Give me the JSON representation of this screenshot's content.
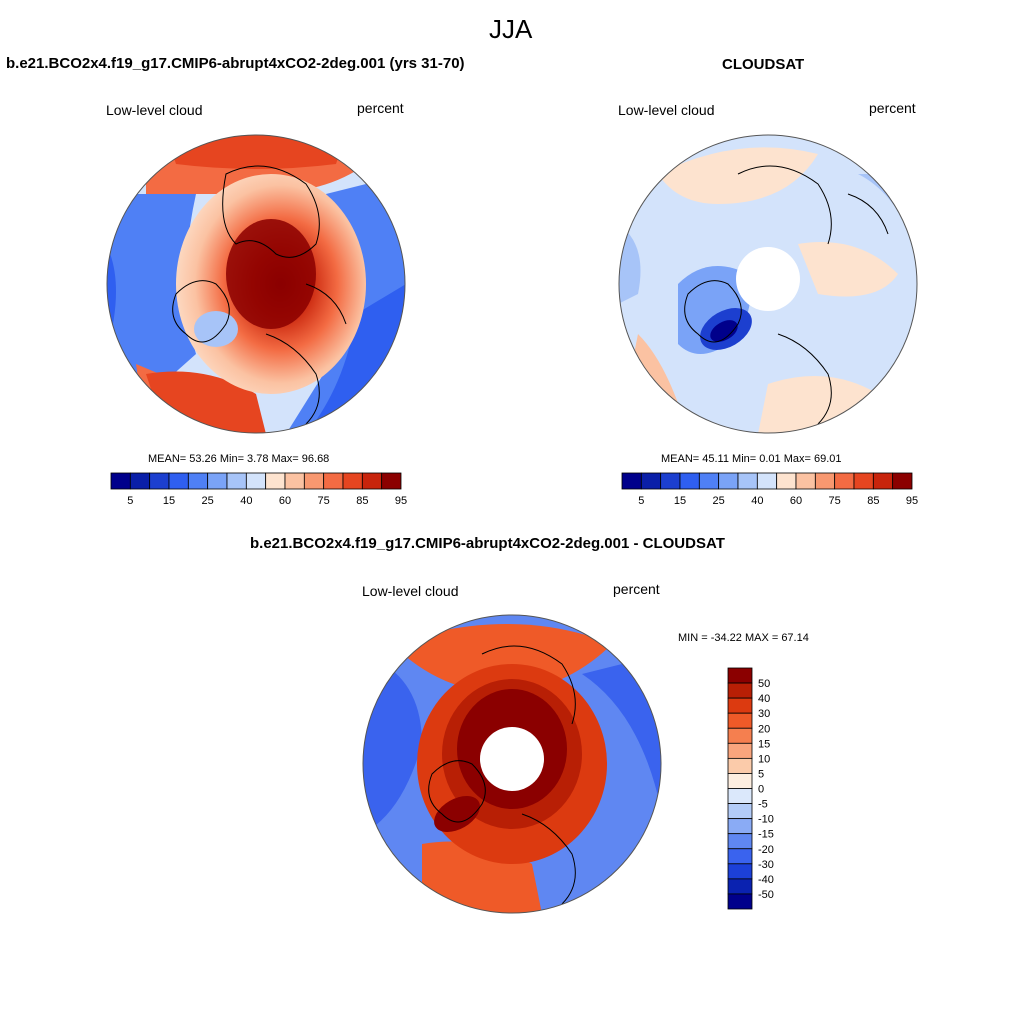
{
  "page_title": "JJA",
  "panels": [
    {
      "title": "b.e21.BCO2x4.f19_g17.CMIP6-abrupt4xCO2-2deg.001 (yrs 31-70)",
      "left_label": "Low-level cloud",
      "right_label": "percent",
      "stats": "MEAN=  53.26  Min=   3.78  Max=  96.68"
    },
    {
      "title": "CLOUDSAT",
      "left_label": "Low-level cloud",
      "right_label": "percent",
      "stats": "MEAN=  45.11  Min=   0.01  Max=  69.01"
    },
    {
      "title": "b.e21.BCO2x4.f19_g17.CMIP6-abrupt4xCO2-2deg.001 - CLOUDSAT",
      "left_label": "Low-level cloud",
      "right_label": "percent",
      "stats": "MIN = -34.22 MAX =  67.14"
    }
  ],
  "abs_colorbar": {
    "colors": [
      "#00008b",
      "#0a1fa8",
      "#1c3fcf",
      "#2f5ff0",
      "#4f80f5",
      "#7aa3f7",
      "#a7c4f8",
      "#d3e3fb",
      "#fde3cf",
      "#fbc2a2",
      "#f89870",
      "#f36b43",
      "#e64520",
      "#c8240c",
      "#8b0000"
    ],
    "tick_labels": [
      "5",
      "15",
      "25",
      "40",
      "60",
      "75",
      "85",
      "95"
    ]
  },
  "diff_colorbar": {
    "colors": [
      "#8b0000",
      "#b81f05",
      "#dc3a10",
      "#ef5a28",
      "#f57f4f",
      "#f9a57d",
      "#fbcbaa",
      "#fdeee0",
      "#dbe8fb",
      "#b3ccf8",
      "#8aabf5",
      "#5f87f2",
      "#3a63ee",
      "#1c40d8",
      "#0a22b0",
      "#00008b"
    ],
    "tick_labels": [
      "50",
      "40",
      "30",
      "20",
      "15",
      "10",
      "5",
      "0",
      "-5",
      "-10",
      "-15",
      "-20",
      "-30",
      "-40",
      "-50"
    ]
  }
}
